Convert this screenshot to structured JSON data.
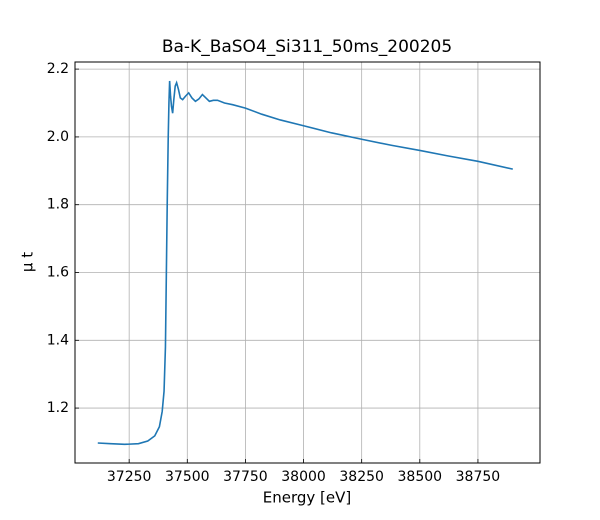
{
  "chart_data": {
    "type": "line",
    "title": "Ba-K_BaSO4_Si311_50ms_200205",
    "xlabel": "Energy [eV]",
    "ylabel": "μ t",
    "x": [
      37115,
      37170,
      37230,
      37290,
      37330,
      37360,
      37380,
      37392,
      37400,
      37406,
      37410,
      37414,
      37418,
      37421,
      37424,
      37428,
      37432,
      37437,
      37442,
      37448,
      37454,
      37462,
      37470,
      37480,
      37492,
      37506,
      37520,
      37535,
      37550,
      37565,
      37580,
      37595,
      37612,
      37630,
      37660,
      37695,
      37750,
      37820,
      37900,
      38000,
      38120,
      38250,
      38380,
      38500,
      38620,
      38750,
      38900
    ],
    "series": [
      {
        "name": "μ t",
        "color": "#1f77b4",
        "values": [
          1.097,
          1.095,
          1.093,
          1.095,
          1.103,
          1.118,
          1.145,
          1.19,
          1.25,
          1.38,
          1.6,
          1.82,
          2.0,
          2.1,
          2.165,
          2.12,
          2.09,
          2.07,
          2.11,
          2.15,
          2.16,
          2.14,
          2.115,
          2.11,
          2.12,
          2.13,
          2.115,
          2.105,
          2.112,
          2.125,
          2.115,
          2.105,
          2.108,
          2.108,
          2.1,
          2.095,
          2.085,
          2.067,
          2.05,
          2.033,
          2.012,
          1.993,
          1.975,
          1.96,
          1.944,
          1.928,
          1.905
        ]
      }
    ],
    "xlim": [
      37017,
      39017
    ],
    "ylim": [
      1.038,
      2.221
    ],
    "xticks": [
      37250,
      37500,
      37750,
      38000,
      38250,
      38500,
      38750
    ],
    "yticks": [
      1.2,
      1.4,
      1.6,
      1.8,
      {
        "value": 2,
        "label": "2.0"
      },
      2.2
    ],
    "grid": true
  }
}
